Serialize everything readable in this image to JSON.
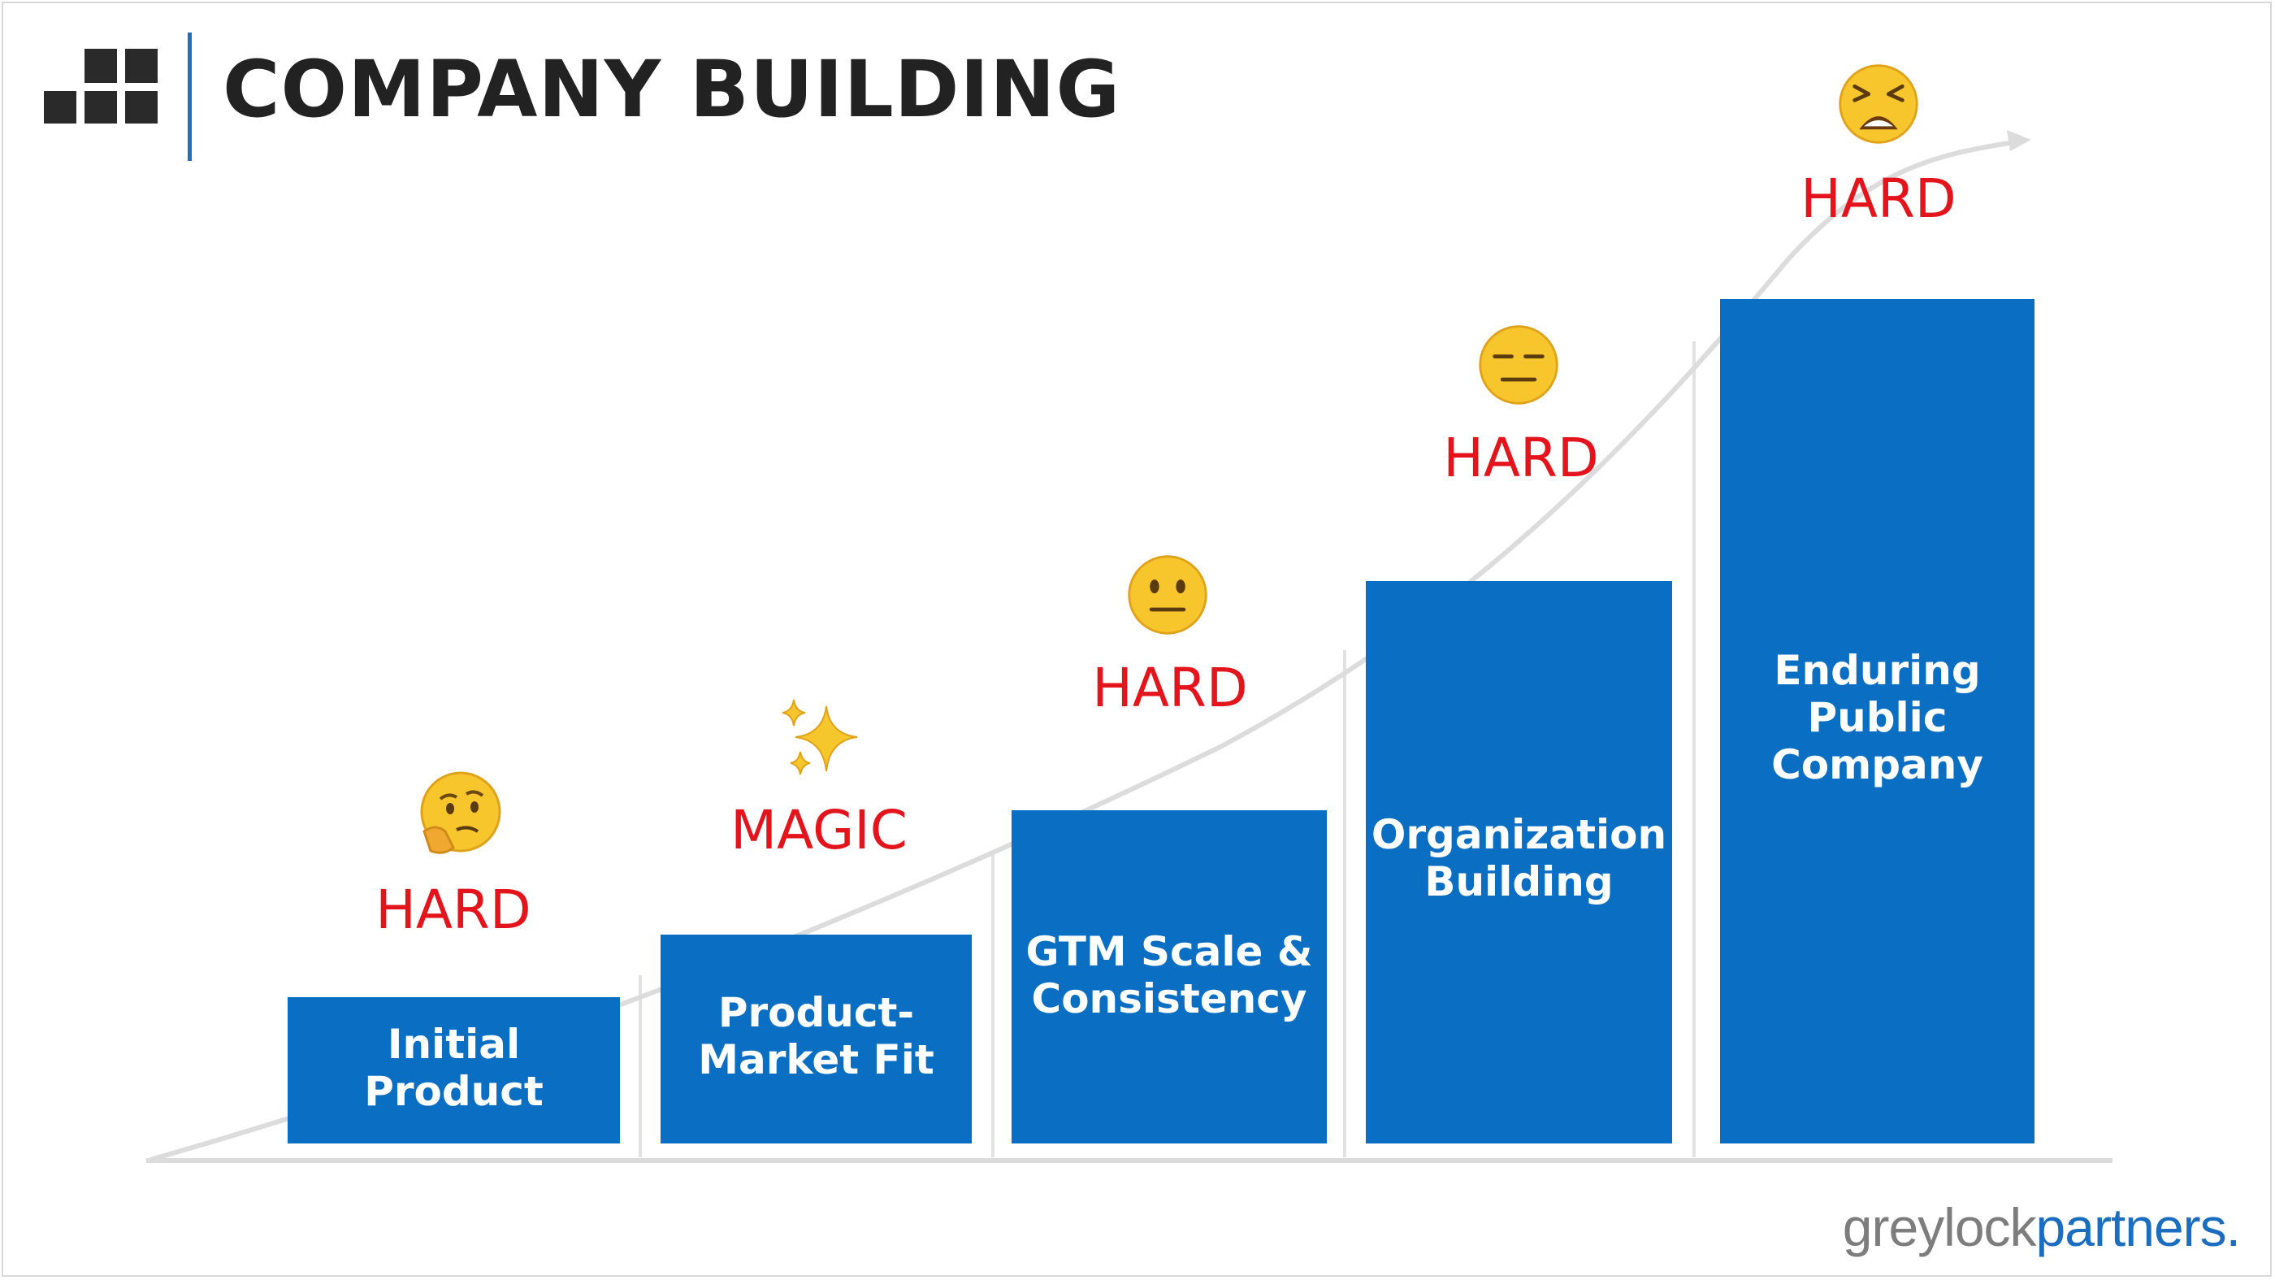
{
  "title": "COMPANY BUILDING",
  "colors": {
    "bar": "#0a6fc2",
    "difficulty_text": "#e3141b",
    "title_text": "#222222",
    "divider": "#1f6fbf",
    "curve": "#dcdcdc"
  },
  "stages": [
    {
      "label": "Initial Product",
      "difficulty": "HARD",
      "emoji": "thinking-face-icon"
    },
    {
      "label": "Product-Market Fit",
      "difficulty": "MAGIC",
      "emoji": "sparkles-icon"
    },
    {
      "label": "GTM Scale & Consistency",
      "difficulty": "HARD",
      "emoji": "neutral-face-icon"
    },
    {
      "label": "Organization Building",
      "difficulty": "HARD",
      "emoji": "expressionless-face-icon"
    },
    {
      "label": "Enduring Public Company",
      "difficulty": "HARD",
      "emoji": "weary-face-icon"
    }
  ],
  "brand": {
    "part1": "greylock",
    "part2": "partners."
  }
}
